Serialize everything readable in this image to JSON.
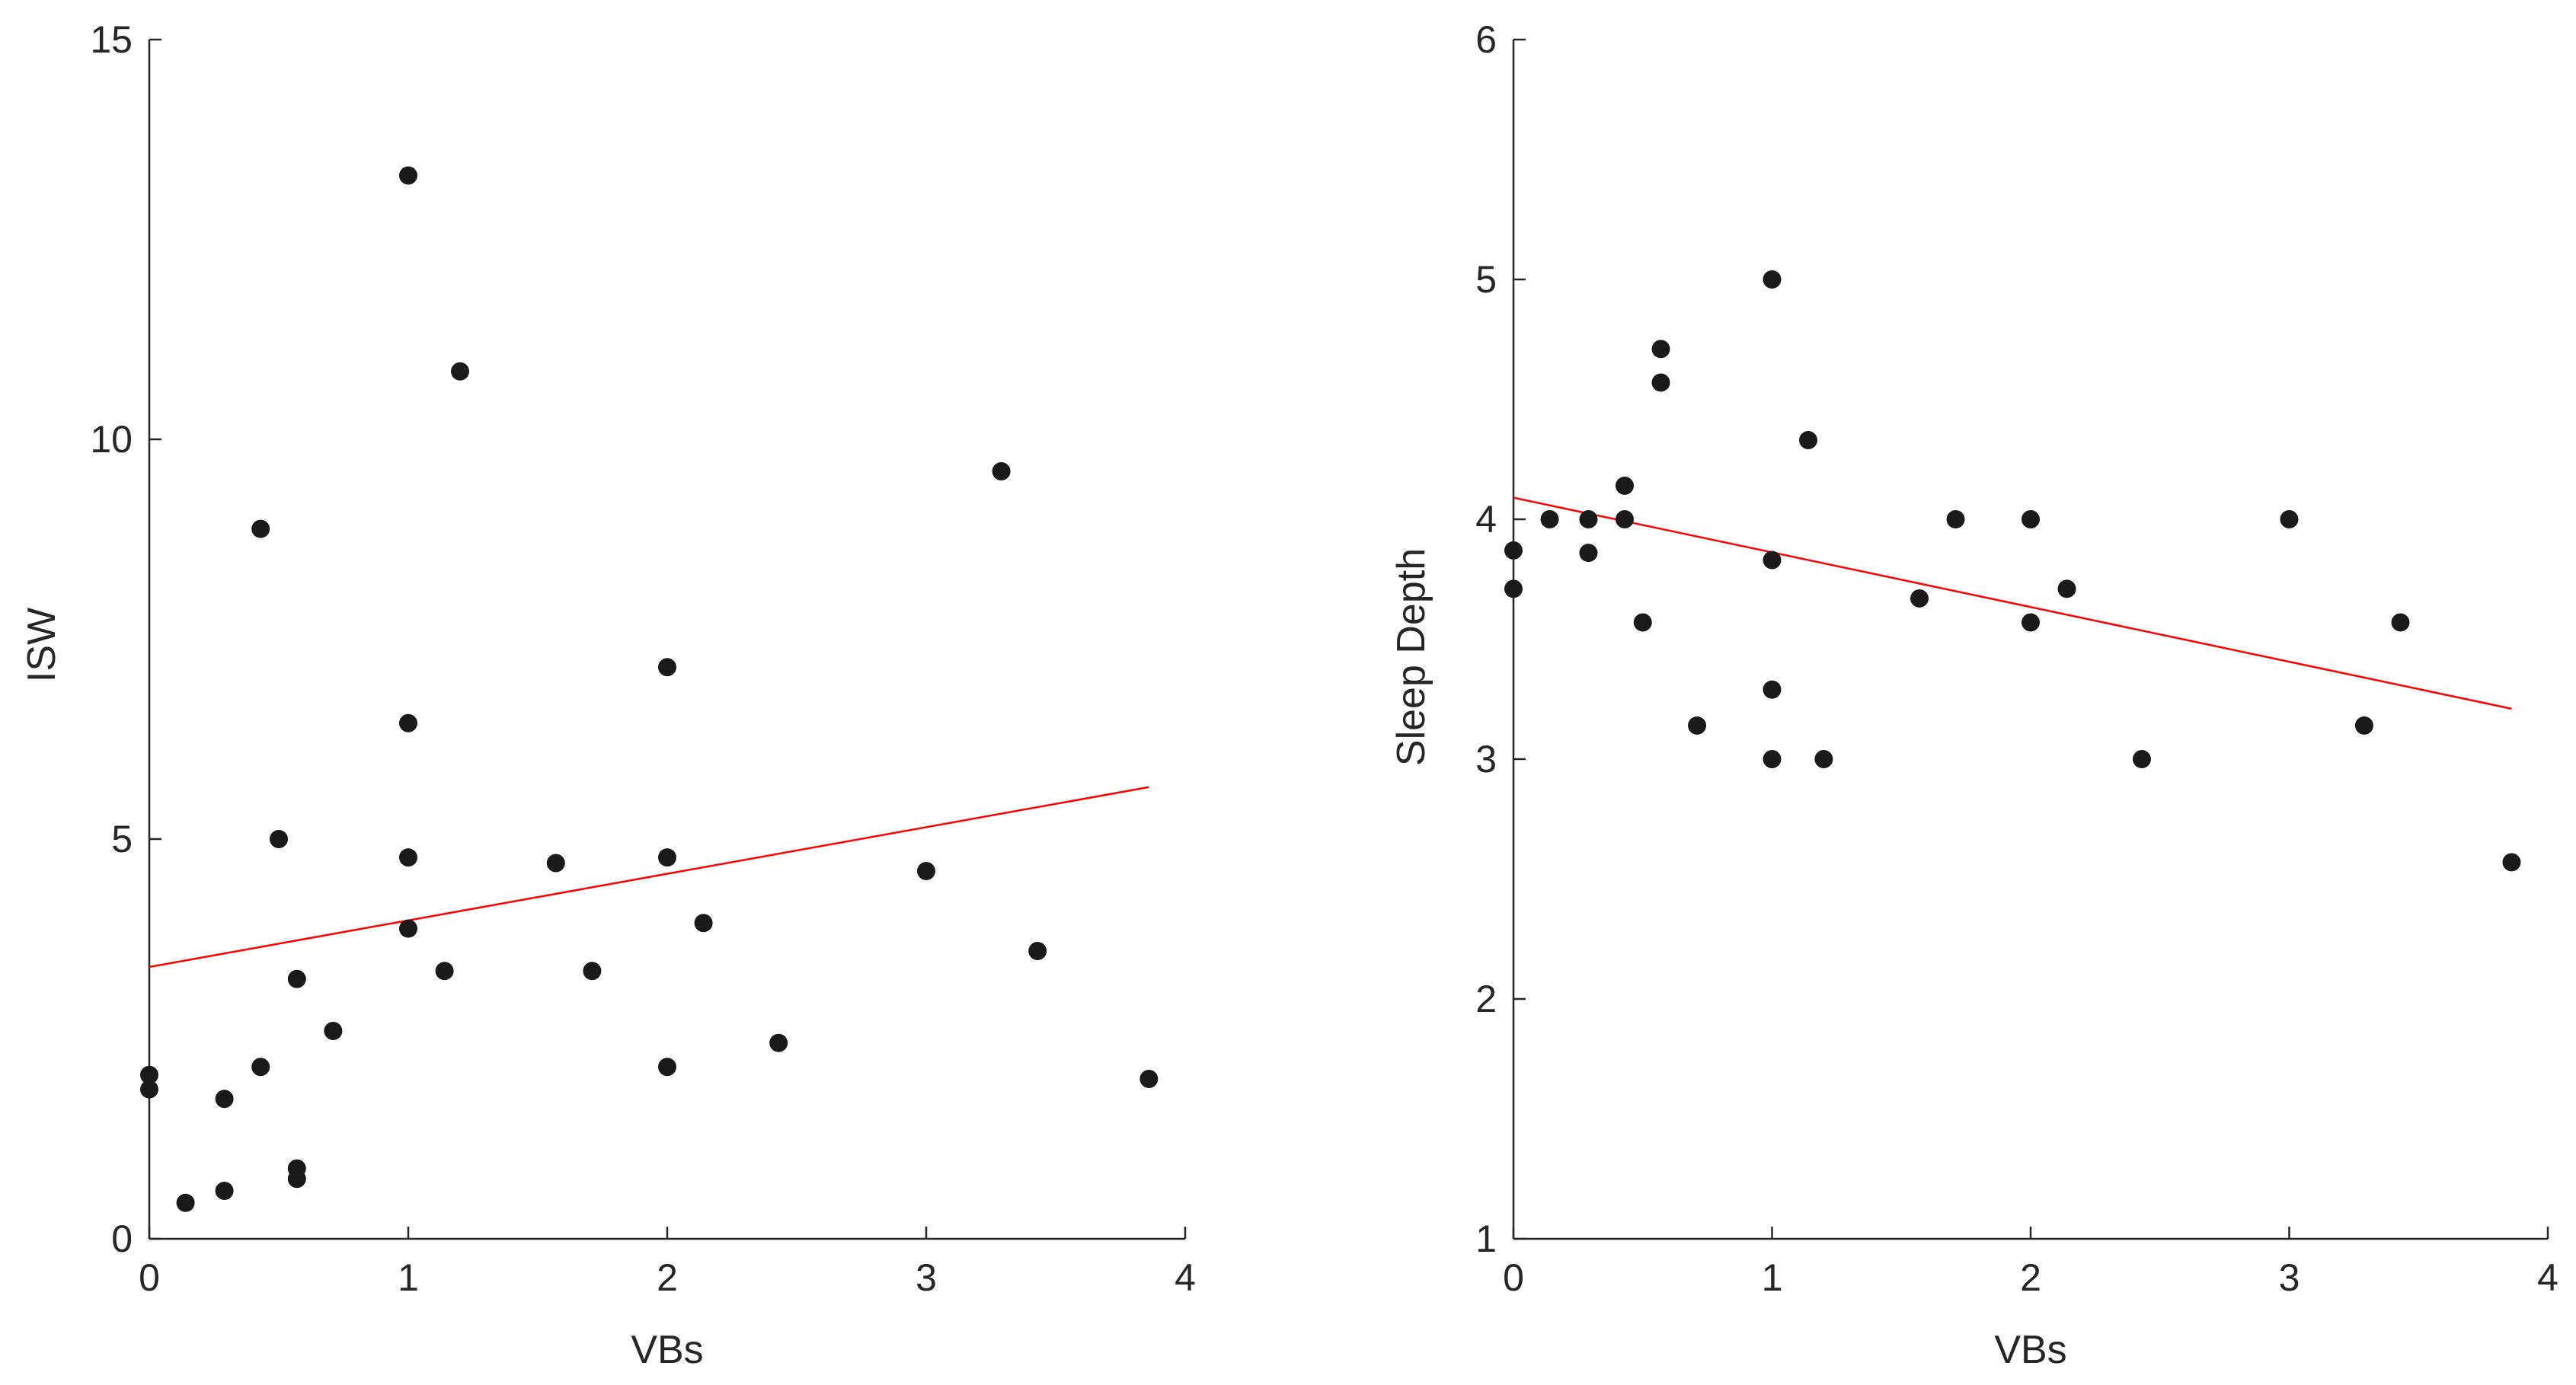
{
  "chart_data": [
    {
      "type": "scatter",
      "xlabel": "VBs",
      "ylabel": "ISW",
      "xlim": [
        0,
        4
      ],
      "ylim": [
        0,
        15
      ],
      "xticks": [
        0,
        1,
        2,
        3,
        4
      ],
      "yticks": [
        0,
        5,
        10,
        15
      ],
      "marker_color": "#1a1a1a",
      "fit_line": {
        "color": "#ff0000",
        "x": [
          0,
          3.86
        ],
        "y": [
          3.4,
          5.65
        ]
      },
      "points": [
        {
          "x": 0,
          "y": 2.05
        },
        {
          "x": 0,
          "y": 1.87
        },
        {
          "x": 0.14,
          "y": 0.45
        },
        {
          "x": 0.29,
          "y": 0.6
        },
        {
          "x": 0.29,
          "y": 1.75
        },
        {
          "x": 0.43,
          "y": 2.15
        },
        {
          "x": 0.43,
          "y": 8.88
        },
        {
          "x": 0.5,
          "y": 5.0
        },
        {
          "x": 0.57,
          "y": 0.75
        },
        {
          "x": 0.57,
          "y": 0.88
        },
        {
          "x": 0.57,
          "y": 3.25
        },
        {
          "x": 0.71,
          "y": 2.6
        },
        {
          "x": 1,
          "y": 13.3
        },
        {
          "x": 1,
          "y": 6.45
        },
        {
          "x": 1,
          "y": 4.77
        },
        {
          "x": 1,
          "y": 3.88
        },
        {
          "x": 1.14,
          "y": 3.35
        },
        {
          "x": 1.2,
          "y": 10.85
        },
        {
          "x": 1.57,
          "y": 4.7
        },
        {
          "x": 1.71,
          "y": 3.35
        },
        {
          "x": 2,
          "y": 7.15
        },
        {
          "x": 2,
          "y": 4.77
        },
        {
          "x": 2,
          "y": 2.15
        },
        {
          "x": 2.14,
          "y": 3.95
        },
        {
          "x": 2.43,
          "y": 2.45
        },
        {
          "x": 3,
          "y": 4.6
        },
        {
          "x": 3.29,
          "y": 9.6
        },
        {
          "x": 3.43,
          "y": 3.6
        },
        {
          "x": 3.86,
          "y": 2.0
        }
      ]
    },
    {
      "type": "scatter",
      "xlabel": "VBs",
      "ylabel": "Sleep Depth",
      "xlim": [
        0,
        4
      ],
      "ylim": [
        1,
        6
      ],
      "xticks": [
        0,
        1,
        2,
        3,
        4
      ],
      "yticks": [
        1,
        2,
        3,
        4,
        5,
        6
      ],
      "marker_color": "#1a1a1a",
      "fit_line": {
        "color": "#ff0000",
        "x": [
          0,
          3.86
        ],
        "y": [
          4.09,
          3.21
        ]
      },
      "points": [
        {
          "x": 0,
          "y": 3.87
        },
        {
          "x": 0,
          "y": 3.71
        },
        {
          "x": 0.14,
          "y": 4.0
        },
        {
          "x": 0.29,
          "y": 4.0
        },
        {
          "x": 0.29,
          "y": 3.86
        },
        {
          "x": 0.43,
          "y": 4.14
        },
        {
          "x": 0.43,
          "y": 4.0
        },
        {
          "x": 0.5,
          "y": 3.57
        },
        {
          "x": 0.57,
          "y": 4.71
        },
        {
          "x": 0.57,
          "y": 4.57
        },
        {
          "x": 0.71,
          "y": 3.14
        },
        {
          "x": 1,
          "y": 5.0
        },
        {
          "x": 1,
          "y": 3.83
        },
        {
          "x": 1,
          "y": 3.29
        },
        {
          "x": 1,
          "y": 3.0
        },
        {
          "x": 1.14,
          "y": 4.33
        },
        {
          "x": 1.2,
          "y": 3.0
        },
        {
          "x": 1.57,
          "y": 3.67
        },
        {
          "x": 1.71,
          "y": 4.0
        },
        {
          "x": 2,
          "y": 4.0
        },
        {
          "x": 2,
          "y": 3.57
        },
        {
          "x": 2.14,
          "y": 3.71
        },
        {
          "x": 2.43,
          "y": 3.0
        },
        {
          "x": 3,
          "y": 4.0
        },
        {
          "x": 3.29,
          "y": 3.14
        },
        {
          "x": 3.43,
          "y": 3.57
        },
        {
          "x": 3.86,
          "y": 2.57
        }
      ]
    }
  ]
}
